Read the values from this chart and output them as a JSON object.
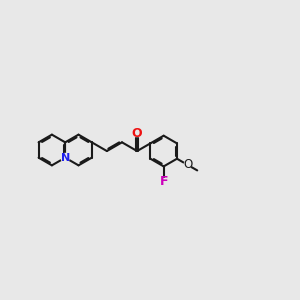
{
  "bg": "#e8e8e8",
  "bc": "#1a1a1a",
  "nc": "#2020ee",
  "oc": "#ee1111",
  "fc": "#cc00bb",
  "lw": 1.5,
  "r": 0.44,
  "cl": 0.5,
  "figsize": [
    3.0,
    3.0
  ],
  "dpi": 100,
  "xlim": [
    0.2,
    8.8
  ],
  "ylim": [
    3.2,
    7.2
  ]
}
